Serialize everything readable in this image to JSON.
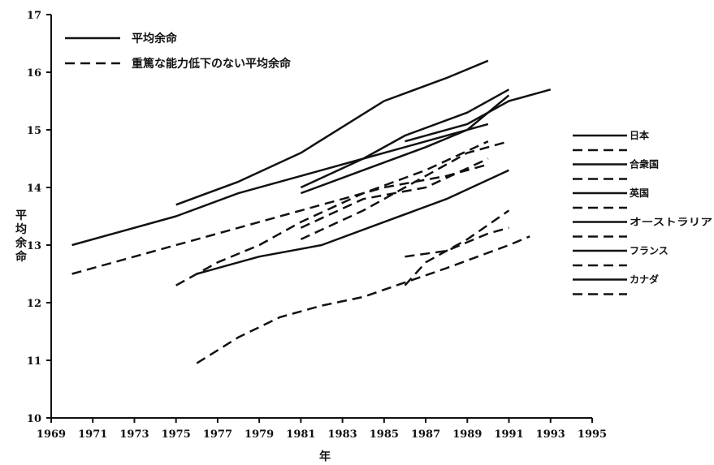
{
  "chart_data": {
    "type": "line",
    "title": "",
    "xlabel": "年",
    "ylabel": "平均余命",
    "xlim": [
      1969,
      1995
    ],
    "ylim": [
      10,
      17
    ],
    "x_ticks": [
      "1969",
      "1971",
      "1973",
      "1975",
      "1977",
      "1979",
      "1981",
      "1983",
      "1985",
      "1987",
      "1989",
      "1991",
      "1993",
      "1995"
    ],
    "y_ticks": [
      "10",
      "11",
      "12",
      "13",
      "14",
      "15",
      "16",
      "17"
    ],
    "line_color": "#111111",
    "legend": {
      "placement": "top-left",
      "items": [
        {
          "label": "平均余命",
          "style": "solid"
        },
        {
          "label": "重篤な能力低下のない平均余命",
          "style": "dashed"
        }
      ]
    },
    "country_legend": {
      "placement": "right",
      "items": [
        "日本",
        "合衆国",
        "英国",
        "オーストラリア",
        "フランス",
        "カナダ"
      ]
    },
    "series": [
      {
        "name": "日本",
        "style": "solid",
        "points": [
          [
            1975,
            13.7
          ],
          [
            1978,
            14.1
          ],
          [
            1981,
            14.6
          ],
          [
            1985,
            15.5
          ],
          [
            1988,
            15.9
          ],
          [
            1990,
            16.2
          ]
        ]
      },
      {
        "name": "日本",
        "style": "dashed",
        "points": [
          [
            1975,
            12.3
          ],
          [
            1977,
            12.7
          ],
          [
            1979,
            13.0
          ],
          [
            1981,
            13.4
          ],
          [
            1984,
            13.9
          ],
          [
            1987,
            14.3
          ],
          [
            1990,
            14.8
          ]
        ]
      },
      {
        "name": "合衆国",
        "style": "solid",
        "points": [
          [
            1970,
            13.0
          ],
          [
            1972,
            13.2
          ],
          [
            1975,
            13.5
          ],
          [
            1978,
            13.9
          ],
          [
            1981,
            14.2
          ],
          [
            1984,
            14.5
          ],
          [
            1987,
            14.8
          ],
          [
            1990,
            15.1
          ]
        ]
      },
      {
        "name": "合衆国",
        "style": "dashed",
        "points": [
          [
            1970,
            12.5
          ],
          [
            1973,
            12.8
          ],
          [
            1976,
            13.1
          ],
          [
            1979,
            13.4
          ],
          [
            1982,
            13.7
          ],
          [
            1985,
            14.0
          ],
          [
            1988,
            14.2
          ],
          [
            1990,
            14.4
          ]
        ]
      },
      {
        "name": "英国",
        "style": "solid",
        "points": [
          [
            1976,
            12.5
          ],
          [
            1979,
            12.8
          ],
          [
            1982,
            13.0
          ],
          [
            1985,
            13.4
          ],
          [
            1988,
            13.8
          ],
          [
            1991,
            14.3
          ]
        ]
      },
      {
        "name": "英国",
        "style": "dashed",
        "points": [
          [
            1976,
            10.95
          ],
          [
            1978,
            11.4
          ],
          [
            1980,
            11.75
          ],
          [
            1982,
            11.95
          ],
          [
            1984,
            12.1
          ],
          [
            1986,
            12.35
          ],
          [
            1988,
            12.6
          ],
          [
            1991,
            13.0
          ],
          [
            1992,
            13.15
          ]
        ]
      },
      {
        "name": "オーストラリア",
        "style": "solid",
        "points": [
          [
            1981,
            13.9
          ],
          [
            1984,
            14.3
          ],
          [
            1987,
            14.7
          ],
          [
            1989,
            15.0
          ],
          [
            1991,
            15.6
          ]
        ]
      },
      {
        "name": "オーストラリア",
        "style": "dashed",
        "points": [
          [
            1981,
            13.1
          ],
          [
            1984,
            13.6
          ],
          [
            1987,
            14.2
          ],
          [
            1989,
            14.6
          ],
          [
            1991,
            14.8
          ]
        ]
      },
      {
        "name": "フランス",
        "style": "solid",
        "points": [
          [
            1981,
            14.0
          ],
          [
            1984,
            14.5
          ],
          [
            1986,
            14.9
          ],
          [
            1989,
            15.3
          ],
          [
            1991,
            15.7
          ]
        ]
      },
      {
        "name": "フランス",
        "style": "dashed",
        "points": [
          [
            1981,
            13.3
          ],
          [
            1984,
            13.8
          ],
          [
            1987,
            14.0
          ],
          [
            1990,
            14.5
          ]
        ]
      },
      {
        "name": "カナダ",
        "style": "solid",
        "points": [
          [
            1986,
            14.8
          ],
          [
            1989,
            15.1
          ],
          [
            1991,
            15.5
          ],
          [
            1993,
            15.7
          ]
        ]
      },
      {
        "name": "カナダ",
        "style": "dashed",
        "points": [
          [
            1986,
            12.8
          ],
          [
            1988,
            12.9
          ],
          [
            1990,
            13.2
          ],
          [
            1991,
            13.3
          ]
        ]
      },
      {
        "name": "",
        "style": "dashed",
        "points": [
          [
            1986,
            12.3
          ],
          [
            1987,
            12.7
          ],
          [
            1989,
            13.1
          ],
          [
            1991,
            13.6
          ]
        ]
      }
    ]
  }
}
